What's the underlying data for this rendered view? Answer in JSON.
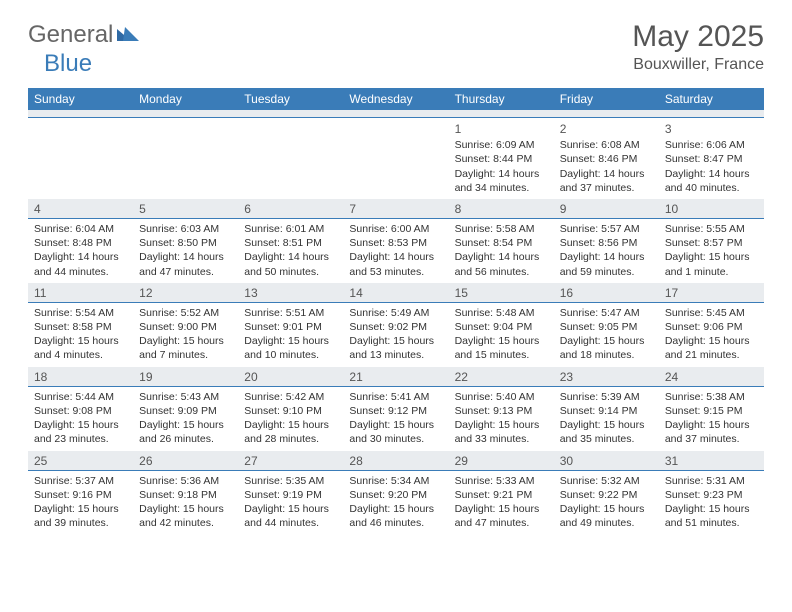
{
  "brand": {
    "part1": "General",
    "part2": "Blue"
  },
  "title": "May 2025",
  "location": "Bouxwiller, France",
  "colors": {
    "header_bg": "#3a7cb8",
    "stripe_bg": "#e9ecef",
    "stripe_border": "#3a7cb8",
    "text": "#333333"
  },
  "weekdays": [
    "Sunday",
    "Monday",
    "Tuesday",
    "Wednesday",
    "Thursday",
    "Friday",
    "Saturday"
  ],
  "weeks": [
    [
      {
        "n": "",
        "sr": "",
        "ss": "",
        "dl": ""
      },
      {
        "n": "",
        "sr": "",
        "ss": "",
        "dl": ""
      },
      {
        "n": "",
        "sr": "",
        "ss": "",
        "dl": ""
      },
      {
        "n": "",
        "sr": "",
        "ss": "",
        "dl": ""
      },
      {
        "n": "1",
        "sr": "Sunrise: 6:09 AM",
        "ss": "Sunset: 8:44 PM",
        "dl": "Daylight: 14 hours and 34 minutes."
      },
      {
        "n": "2",
        "sr": "Sunrise: 6:08 AM",
        "ss": "Sunset: 8:46 PM",
        "dl": "Daylight: 14 hours and 37 minutes."
      },
      {
        "n": "3",
        "sr": "Sunrise: 6:06 AM",
        "ss": "Sunset: 8:47 PM",
        "dl": "Daylight: 14 hours and 40 minutes."
      }
    ],
    [
      {
        "n": "4",
        "sr": "Sunrise: 6:04 AM",
        "ss": "Sunset: 8:48 PM",
        "dl": "Daylight: 14 hours and 44 minutes."
      },
      {
        "n": "5",
        "sr": "Sunrise: 6:03 AM",
        "ss": "Sunset: 8:50 PM",
        "dl": "Daylight: 14 hours and 47 minutes."
      },
      {
        "n": "6",
        "sr": "Sunrise: 6:01 AM",
        "ss": "Sunset: 8:51 PM",
        "dl": "Daylight: 14 hours and 50 minutes."
      },
      {
        "n": "7",
        "sr": "Sunrise: 6:00 AM",
        "ss": "Sunset: 8:53 PM",
        "dl": "Daylight: 14 hours and 53 minutes."
      },
      {
        "n": "8",
        "sr": "Sunrise: 5:58 AM",
        "ss": "Sunset: 8:54 PM",
        "dl": "Daylight: 14 hours and 56 minutes."
      },
      {
        "n": "9",
        "sr": "Sunrise: 5:57 AM",
        "ss": "Sunset: 8:56 PM",
        "dl": "Daylight: 14 hours and 59 minutes."
      },
      {
        "n": "10",
        "sr": "Sunrise: 5:55 AM",
        "ss": "Sunset: 8:57 PM",
        "dl": "Daylight: 15 hours and 1 minute."
      }
    ],
    [
      {
        "n": "11",
        "sr": "Sunrise: 5:54 AM",
        "ss": "Sunset: 8:58 PM",
        "dl": "Daylight: 15 hours and 4 minutes."
      },
      {
        "n": "12",
        "sr": "Sunrise: 5:52 AM",
        "ss": "Sunset: 9:00 PM",
        "dl": "Daylight: 15 hours and 7 minutes."
      },
      {
        "n": "13",
        "sr": "Sunrise: 5:51 AM",
        "ss": "Sunset: 9:01 PM",
        "dl": "Daylight: 15 hours and 10 minutes."
      },
      {
        "n": "14",
        "sr": "Sunrise: 5:49 AM",
        "ss": "Sunset: 9:02 PM",
        "dl": "Daylight: 15 hours and 13 minutes."
      },
      {
        "n": "15",
        "sr": "Sunrise: 5:48 AM",
        "ss": "Sunset: 9:04 PM",
        "dl": "Daylight: 15 hours and 15 minutes."
      },
      {
        "n": "16",
        "sr": "Sunrise: 5:47 AM",
        "ss": "Sunset: 9:05 PM",
        "dl": "Daylight: 15 hours and 18 minutes."
      },
      {
        "n": "17",
        "sr": "Sunrise: 5:45 AM",
        "ss": "Sunset: 9:06 PM",
        "dl": "Daylight: 15 hours and 21 minutes."
      }
    ],
    [
      {
        "n": "18",
        "sr": "Sunrise: 5:44 AM",
        "ss": "Sunset: 9:08 PM",
        "dl": "Daylight: 15 hours and 23 minutes."
      },
      {
        "n": "19",
        "sr": "Sunrise: 5:43 AM",
        "ss": "Sunset: 9:09 PM",
        "dl": "Daylight: 15 hours and 26 minutes."
      },
      {
        "n": "20",
        "sr": "Sunrise: 5:42 AM",
        "ss": "Sunset: 9:10 PM",
        "dl": "Daylight: 15 hours and 28 minutes."
      },
      {
        "n": "21",
        "sr": "Sunrise: 5:41 AM",
        "ss": "Sunset: 9:12 PM",
        "dl": "Daylight: 15 hours and 30 minutes."
      },
      {
        "n": "22",
        "sr": "Sunrise: 5:40 AM",
        "ss": "Sunset: 9:13 PM",
        "dl": "Daylight: 15 hours and 33 minutes."
      },
      {
        "n": "23",
        "sr": "Sunrise: 5:39 AM",
        "ss": "Sunset: 9:14 PM",
        "dl": "Daylight: 15 hours and 35 minutes."
      },
      {
        "n": "24",
        "sr": "Sunrise: 5:38 AM",
        "ss": "Sunset: 9:15 PM",
        "dl": "Daylight: 15 hours and 37 minutes."
      }
    ],
    [
      {
        "n": "25",
        "sr": "Sunrise: 5:37 AM",
        "ss": "Sunset: 9:16 PM",
        "dl": "Daylight: 15 hours and 39 minutes."
      },
      {
        "n": "26",
        "sr": "Sunrise: 5:36 AM",
        "ss": "Sunset: 9:18 PM",
        "dl": "Daylight: 15 hours and 42 minutes."
      },
      {
        "n": "27",
        "sr": "Sunrise: 5:35 AM",
        "ss": "Sunset: 9:19 PM",
        "dl": "Daylight: 15 hours and 44 minutes."
      },
      {
        "n": "28",
        "sr": "Sunrise: 5:34 AM",
        "ss": "Sunset: 9:20 PM",
        "dl": "Daylight: 15 hours and 46 minutes."
      },
      {
        "n": "29",
        "sr": "Sunrise: 5:33 AM",
        "ss": "Sunset: 9:21 PM",
        "dl": "Daylight: 15 hours and 47 minutes."
      },
      {
        "n": "30",
        "sr": "Sunrise: 5:32 AM",
        "ss": "Sunset: 9:22 PM",
        "dl": "Daylight: 15 hours and 49 minutes."
      },
      {
        "n": "31",
        "sr": "Sunrise: 5:31 AM",
        "ss": "Sunset: 9:23 PM",
        "dl": "Daylight: 15 hours and 51 minutes."
      }
    ]
  ]
}
